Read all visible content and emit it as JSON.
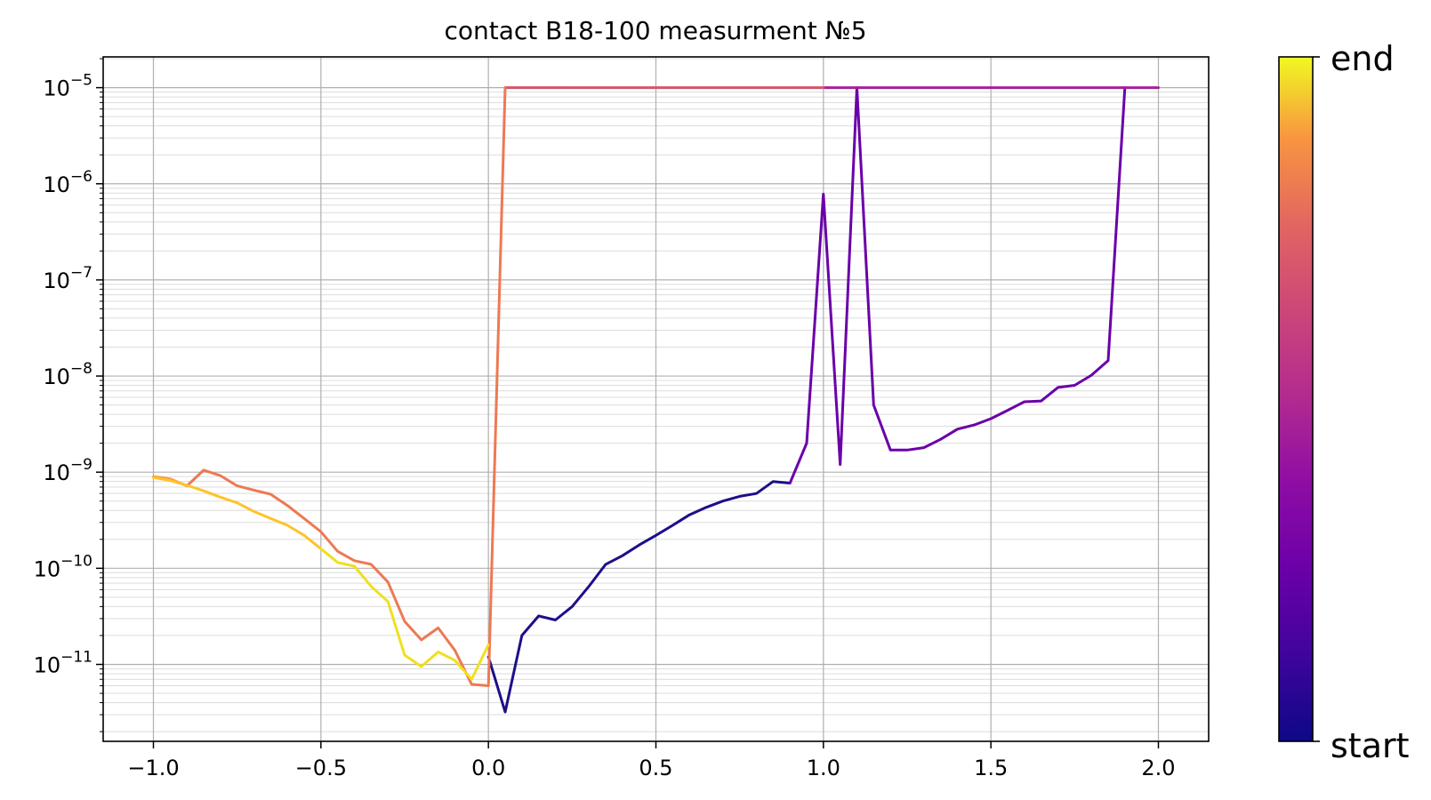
{
  "chart_data": {
    "type": "line",
    "title": "contact B18-100 measurment №5",
    "xlabel": "",
    "ylabel": "",
    "xlim": [
      -1.15,
      2.15
    ],
    "ylim_log10": [
      -11.8,
      -4.68
    ],
    "yscale": "log",
    "xticks": [
      -1.0,
      -0.5,
      0.0,
      0.5,
      1.0,
      1.5,
      2.0
    ],
    "xtick_labels": [
      "−1.0",
      "−0.5",
      "0.0",
      "0.5",
      "1.0",
      "1.5",
      "2.0"
    ],
    "yticks_exp": [
      -11,
      -10,
      -9,
      -8,
      -7,
      -6,
      -5
    ],
    "ytick_labels": [
      {
        "base": "10",
        "exp": "−11"
      },
      {
        "base": "10",
        "exp": "−10"
      },
      {
        "base": "10",
        "exp": "−9"
      },
      {
        "base": "10",
        "exp": "−8"
      },
      {
        "base": "10",
        "exp": "−7"
      },
      {
        "base": "10",
        "exp": "−6"
      },
      {
        "base": "10",
        "exp": "−5"
      }
    ],
    "grid": true,
    "minor_grid": true,
    "colormap": "plasma",
    "colorbar": {
      "bottom_label": "start",
      "top_label": "end"
    },
    "series": [
      {
        "color": "#1c0f8a",
        "x": [
          0.0,
          0.05,
          0.1,
          0.15,
          0.2,
          0.25,
          0.3,
          0.35,
          0.4,
          0.45,
          0.5,
          0.55,
          0.6,
          0.65,
          0.7,
          0.75,
          0.8,
          0.85,
          0.9
        ],
        "y": [
          1.2e-11,
          3.2e-12,
          2e-11,
          3.2e-11,
          2.9e-11,
          4e-11,
          6.5e-11,
          1.1e-10,
          1.35e-10,
          1.75e-10,
          2.2e-10,
          2.8e-10,
          3.6e-10,
          4.3e-10,
          5e-10,
          5.6e-10,
          6e-10,
          8e-10,
          7.7e-10
        ]
      },
      {
        "color": "#6a00a8",
        "x": [
          0.9,
          0.95,
          1.0,
          1.05,
          1.1,
          1.15,
          1.2,
          1.25,
          1.3,
          1.35,
          1.4,
          1.45,
          1.5,
          1.55,
          1.6,
          1.65,
          1.7,
          1.75,
          1.8,
          1.85,
          1.9
        ],
        "y": [
          7.7e-10,
          2e-09,
          7.8e-07,
          1.2e-09,
          1e-05,
          5e-09,
          1.7e-09,
          1.7e-09,
          1.8e-09,
          2.2e-09,
          2.8e-09,
          3.1e-09,
          3.6e-09,
          4.4e-09,
          5.4e-09,
          5.5e-09,
          7.6e-09,
          8e-09,
          1.02e-08,
          1.45e-08,
          1e-05
        ]
      },
      {
        "color": "#a62098",
        "x": [
          1.9,
          1.95,
          2.0,
          1.5,
          1.0
        ],
        "y": [
          1e-05,
          1e-05,
          1e-05,
          1e-05,
          1e-05
        ]
      },
      {
        "color": "#d5546e",
        "x": [
          1.0,
          0.5,
          0.05
        ],
        "y": [
          1e-05,
          1e-05,
          1e-05
        ]
      },
      {
        "color": "#ed7953",
        "x": [
          0.05,
          0.0,
          -0.05,
          -0.1,
          -0.15,
          -0.2,
          -0.25,
          -0.3,
          -0.35,
          -0.4,
          -0.45,
          -0.5,
          -0.55,
          -0.6,
          -0.65,
          -0.7,
          -0.75,
          -0.8,
          -0.85,
          -0.9
        ],
        "y": [
          1e-05,
          6e-12,
          6.2e-12,
          1.4e-11,
          2.4e-11,
          1.8e-11,
          2.8e-11,
          7.2e-11,
          1.1e-10,
          1.2e-10,
          1.5e-10,
          2.4e-10,
          3.3e-10,
          4.5e-10,
          5.9e-10,
          6.5e-10,
          7.2e-10,
          9.2e-10,
          1.05e-09,
          7.2e-10
        ]
      },
      {
        "color": "#f89540",
        "x": [
          -0.9,
          -0.95,
          -1.0
        ],
        "y": [
          7.2e-10,
          8.5e-10,
          9e-10
        ]
      },
      {
        "color": "#fdc328",
        "x": [
          -1.0,
          -0.95,
          -0.9,
          -0.85,
          -0.8,
          -0.75,
          -0.7,
          -0.65,
          -0.6,
          -0.55,
          -0.5
        ],
        "y": [
          8.8e-10,
          8.2e-10,
          7.3e-10,
          6.4e-10,
          5.5e-10,
          4.8e-10,
          3.9e-10,
          3.3e-10,
          2.8e-10,
          2.2e-10,
          1.6e-10
        ]
      },
      {
        "color": "#f0e01e",
        "x": [
          -0.5,
          -0.45,
          -0.4,
          -0.35,
          -0.3,
          -0.25,
          -0.2,
          -0.15,
          -0.1,
          -0.05,
          0.0
        ],
        "y": [
          1.6e-10,
          1.15e-10,
          1.05e-10,
          6.5e-11,
          4.5e-11,
          1.25e-11,
          9.5e-12,
          1.35e-11,
          1.1e-11,
          7e-12,
          1.6e-11
        ]
      }
    ]
  }
}
